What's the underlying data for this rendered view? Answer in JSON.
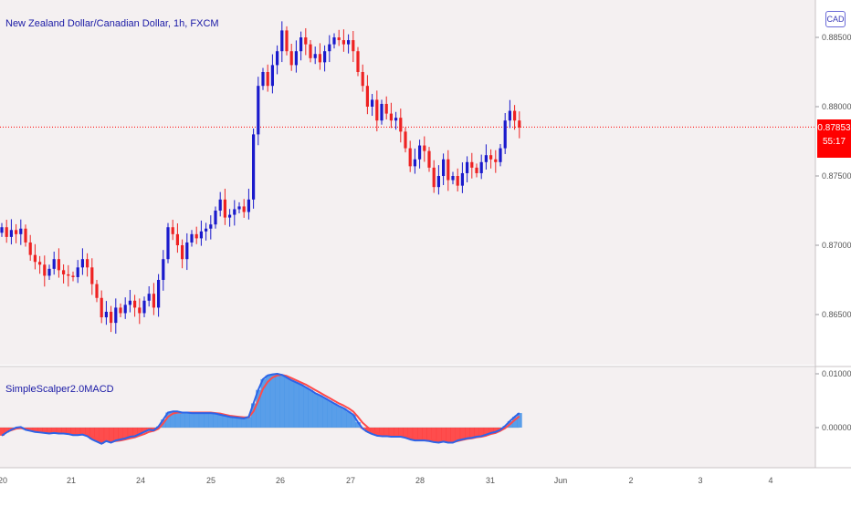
{
  "header": {
    "symbol_title": "New Zealand Dollar/Canadian Dollar, 1h, FXCM",
    "currency": "CAD"
  },
  "price_tag": {
    "price": "0.87853",
    "countdown": "55:17"
  },
  "indicator": {
    "title": "SimpleScalper2.0MACD"
  },
  "colors": {
    "background": "#f4f0f1",
    "bull": "#1a1acc",
    "bear": "#ee2222",
    "price_line": "#ff0000",
    "macd_line": "#2c64e8",
    "signal_line": "#ff4a4a",
    "hist_up": "#3d8fe8",
    "hist_down": "#ff3030",
    "text": "#1a1aa6"
  },
  "chart_data": [
    {
      "type": "candlestick",
      "ylim": [
        0.862,
        0.8875
      ],
      "y_ticks": [
        "0.88500",
        "0.88000",
        "0.87500",
        "0.87000",
        "0.86500"
      ],
      "y_tick_values": [
        0.885,
        0.88,
        0.875,
        0.87,
        0.865
      ],
      "x_tick_labels": [
        "20",
        "21",
        "24",
        "25",
        "26",
        "27",
        "28",
        "31",
        "Jun",
        "2",
        "3",
        "4"
      ],
      "current_price": 0.87853,
      "close_path": [
        0.8713,
        0.8706,
        0.8711,
        0.8708,
        0.8712,
        0.8702,
        0.8693,
        0.8688,
        0.8686,
        0.8678,
        0.8683,
        0.869,
        0.8682,
        0.8679,
        0.8678,
        0.8677,
        0.8684,
        0.869,
        0.8684,
        0.8672,
        0.8662,
        0.8648,
        0.8652,
        0.8644,
        0.8655,
        0.8651,
        0.8657,
        0.866,
        0.8655,
        0.8651,
        0.866,
        0.8665,
        0.8655,
        0.8675,
        0.869,
        0.8713,
        0.8708,
        0.87,
        0.869,
        0.8702,
        0.8708,
        0.8705,
        0.871,
        0.8712,
        0.8715,
        0.8725,
        0.8733,
        0.872,
        0.8722,
        0.8726,
        0.8728,
        0.8724,
        0.8733,
        0.878,
        0.8815,
        0.8825,
        0.8815,
        0.883,
        0.884,
        0.8855,
        0.884,
        0.883,
        0.884,
        0.885,
        0.8845,
        0.8835,
        0.8838,
        0.8832,
        0.884,
        0.8845,
        0.885,
        0.8848,
        0.8845,
        0.8848,
        0.884,
        0.8825,
        0.8815,
        0.88,
        0.8805,
        0.879,
        0.8802,
        0.8795,
        0.879,
        0.8792,
        0.8782,
        0.877,
        0.8757,
        0.8762,
        0.8772,
        0.8768,
        0.8756,
        0.8742,
        0.875,
        0.8762,
        0.8747,
        0.875,
        0.8743,
        0.8752,
        0.876,
        0.8756,
        0.8752,
        0.876,
        0.8765,
        0.8762,
        0.876,
        0.877,
        0.879,
        0.8797,
        0.879,
        0.8785
      ]
    },
    {
      "type": "line",
      "title": "SimpleScalper2.0MACD",
      "ylim": [
        -0.003,
        0.011
      ],
      "y_ticks": [
        "0.01000",
        "0.00000"
      ],
      "y_tick_values": [
        0.01,
        0.0
      ],
      "series": [
        {
          "key": "macd",
          "values": [
            -0.0015,
            -0.0009,
            -0.0004,
            0.0,
            0.0001,
            -0.0004,
            -0.0006,
            -0.0008,
            -0.0009,
            -0.001,
            -0.0011,
            -0.001,
            -0.0011,
            -0.0011,
            -0.0012,
            -0.0014,
            -0.0014,
            -0.0013,
            -0.0016,
            -0.0022,
            -0.0026,
            -0.003,
            -0.0025,
            -0.0028,
            -0.0024,
            -0.0022,
            -0.002,
            -0.0017,
            -0.0016,
            -0.0012,
            -0.0008,
            -0.0004,
            -0.0005,
            0.0002,
            0.0015,
            0.0028,
            0.003,
            0.003,
            0.0028,
            0.0028,
            0.0027,
            0.0027,
            0.0027,
            0.0027,
            0.0027,
            0.0026,
            0.0024,
            0.0022,
            0.002,
            0.0019,
            0.0018,
            0.0017,
            0.002,
            0.0045,
            0.007,
            0.009,
            0.0097,
            0.0099,
            0.01,
            0.0098,
            0.0093,
            0.0088,
            0.0084,
            0.008,
            0.0075,
            0.007,
            0.0064,
            0.006,
            0.0055,
            0.005,
            0.0045,
            0.004,
            0.0036,
            0.003,
            0.0024,
            0.001,
            -0.0002,
            -0.0008,
            -0.0012,
            -0.0015,
            -0.0016,
            -0.0016,
            -0.0017,
            -0.0017,
            -0.0017,
            -0.0019,
            -0.0022,
            -0.0024,
            -0.0024,
            -0.0024,
            -0.0025,
            -0.0027,
            -0.0028,
            -0.0026,
            -0.0028,
            -0.0028,
            -0.0024,
            -0.0022,
            -0.002,
            -0.0019,
            -0.0017,
            -0.0016,
            -0.0013,
            -0.001,
            -0.0008,
            -0.0004,
            0.0003,
            0.0012,
            0.002,
            0.0027
          ]
        },
        {
          "key": "signal",
          "values": [
            -0.0012,
            -0.0008,
            -0.0005,
            -0.0002,
            -0.0001,
            -0.0003,
            -0.0005,
            -0.0007,
            -0.0008,
            -0.0009,
            -0.001,
            -0.001,
            -0.001,
            -0.0011,
            -0.0011,
            -0.0012,
            -0.0013,
            -0.0013,
            -0.0014,
            -0.0017,
            -0.0021,
            -0.0025,
            -0.0025,
            -0.0026,
            -0.0025,
            -0.0024,
            -0.0022,
            -0.002,
            -0.0018,
            -0.0015,
            -0.0012,
            -0.0008,
            -0.0006,
            -0.0002,
            0.0008,
            0.002,
            0.0026,
            0.0028,
            0.0028,
            0.0028,
            0.0028,
            0.0028,
            0.0028,
            0.0028,
            0.0028,
            0.0027,
            0.0026,
            0.0024,
            0.0022,
            0.0021,
            0.002,
            0.0019,
            0.0019,
            0.003,
            0.005,
            0.0072,
            0.0085,
            0.0093,
            0.0097,
            0.0098,
            0.0096,
            0.0092,
            0.0088,
            0.0084,
            0.008,
            0.0075,
            0.007,
            0.0065,
            0.006,
            0.0055,
            0.005,
            0.0045,
            0.0041,
            0.0036,
            0.003,
            0.002,
            0.0009,
            0.0001,
            -0.0005,
            -0.001,
            -0.0013,
            -0.0015,
            -0.0016,
            -0.0016,
            -0.0016,
            -0.0017,
            -0.0019,
            -0.0021,
            -0.0022,
            -0.0023,
            -0.0023,
            -0.0025,
            -0.0026,
            -0.0026,
            -0.0027,
            -0.0027,
            -0.0025,
            -0.0023,
            -0.0021,
            -0.002,
            -0.0018,
            -0.0017,
            -0.0015,
            -0.0012,
            -0.001,
            -0.0006,
            -0.0001,
            0.0006,
            0.0014,
            0.0021
          ]
        }
      ]
    }
  ]
}
